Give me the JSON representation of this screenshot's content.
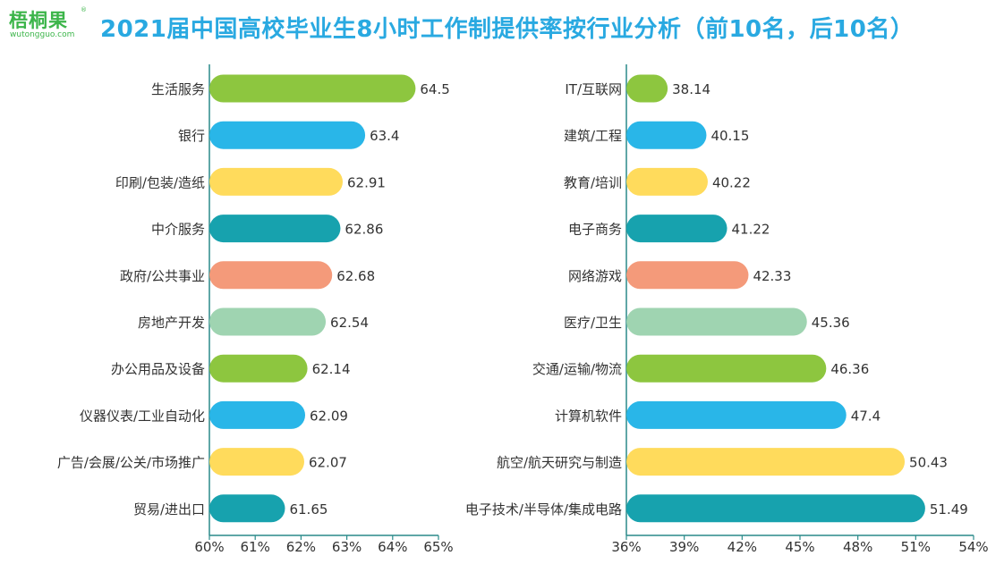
{
  "logo": {
    "name": "梧桐果",
    "registered": "®",
    "site": "wutongguo.com"
  },
  "title": "2021届中国高校毕业生8小时工作制提供率按行业分析（前10名，后10名）",
  "colors": [
    "#8dc63f",
    "#29b6e8",
    "#ffdb5c",
    "#17a2ae",
    "#f49a7a",
    "#9fd4b1"
  ],
  "chart_data": [
    {
      "type": "bar",
      "orientation": "horizontal",
      "title": "",
      "categories": [
        "生活服务",
        "银行",
        "印刷/包装/造纸",
        "中介服务",
        "政府/公共事业",
        "房地产开发",
        "办公用品及设备",
        "仪器仪表/工业自动化",
        "广告/会展/公关/市场推广",
        "贸易/进出口"
      ],
      "values": [
        64.5,
        63.4,
        62.91,
        62.86,
        62.68,
        62.54,
        62.14,
        62.09,
        62.07,
        61.65
      ],
      "value_labels": [
        "64.5",
        "63.4",
        "62.91",
        "62.86",
        "62.68",
        "62.54",
        "62.14",
        "62.09",
        "62.07",
        "61.65"
      ],
      "xlim": [
        60,
        65
      ],
      "ticks": [
        60,
        61,
        62,
        63,
        64,
        65
      ],
      "tick_labels": [
        "60%",
        "61%",
        "62%",
        "63%",
        "64%",
        "65%"
      ],
      "grid": false
    },
    {
      "type": "bar",
      "orientation": "horizontal",
      "title": "",
      "categories": [
        "IT/互联网",
        "建筑/工程",
        "教育/培训",
        "电子商务",
        "网络游戏",
        "医疗/卫生",
        "交通/运输/物流",
        "计算机软件",
        "航空/航天研究与制造",
        "电子技术/半导体/集成电路"
      ],
      "values": [
        38.14,
        40.15,
        40.22,
        41.22,
        42.33,
        45.36,
        46.36,
        47.4,
        50.43,
        51.49
      ],
      "value_labels": [
        "38.14",
        "40.15",
        "40.22",
        "41.22",
        "42.33",
        "45.36",
        "46.36",
        "47.4",
        "50.43",
        "51.49"
      ],
      "xlim": [
        36,
        54
      ],
      "ticks": [
        36,
        39,
        42,
        45,
        48,
        51,
        54
      ],
      "tick_labels": [
        "36%",
        "39%",
        "42%",
        "45%",
        "48%",
        "51%",
        "54%"
      ],
      "grid": false
    }
  ]
}
